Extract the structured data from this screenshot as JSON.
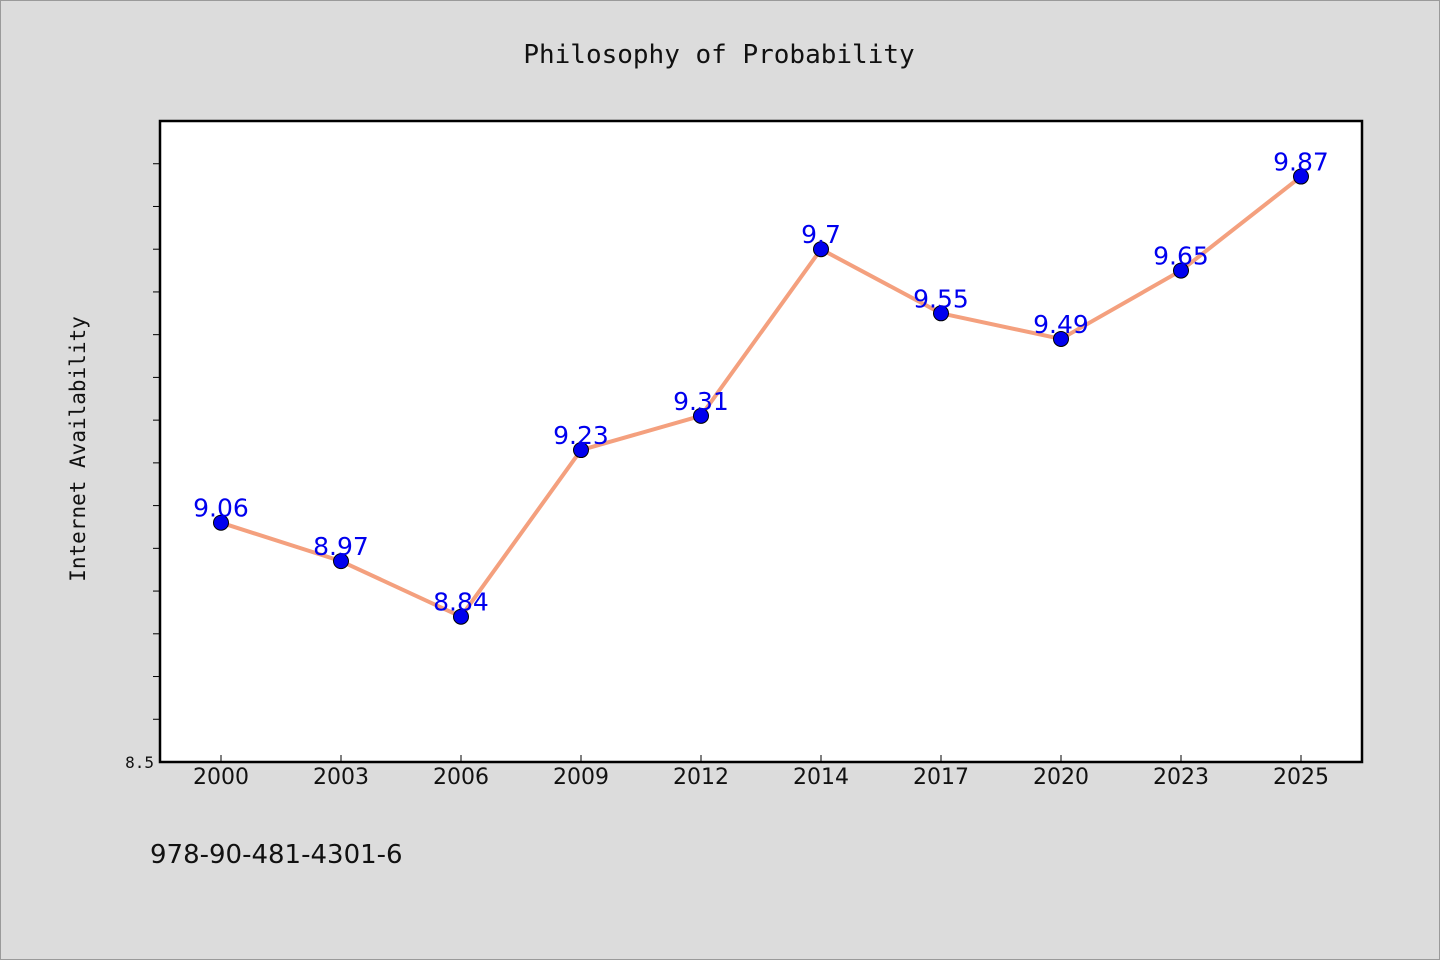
{
  "chart_data": {
    "type": "line",
    "title": "Philosophy of Probability",
    "xlabel": "",
    "ylabel": "Internet Availability",
    "categories": [
      "2000",
      "2003",
      "2006",
      "2009",
      "2012",
      "2014",
      "2017",
      "2020",
      "2023",
      "2025"
    ],
    "series": [
      {
        "values": [
          9.06,
          8.97,
          8.84,
          9.23,
          9.31,
          9.7,
          9.55,
          9.49,
          9.65,
          9.87
        ],
        "labels": [
          "9.06",
          "8.97",
          "8.84",
          "9.23",
          "9.31",
          "9.7",
          "9.55",
          "9.49",
          "9.65",
          "9.87"
        ],
        "line_color": "#f4a07e",
        "marker_color": "#0000ee",
        "label_color": "#0000ee"
      }
    ],
    "ylim": [
      8.5,
      10.0
    ],
    "y_tick_labels": [
      "8.5"
    ],
    "grid": false,
    "legend": "none"
  },
  "footer": {
    "isbn": "978-90-481-4301-6"
  }
}
